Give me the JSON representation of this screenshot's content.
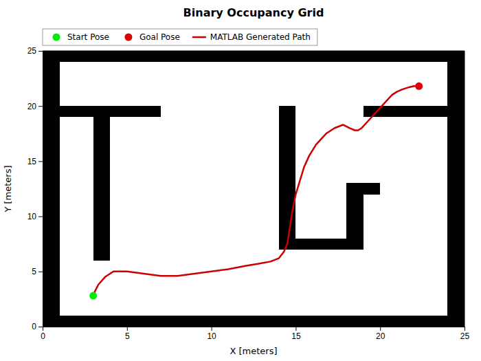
{
  "chart_data": {
    "type": "line",
    "title": "Binary Occupancy Grid",
    "x_label": "X [meters]",
    "y_label": "Y [meters]",
    "xlim": [
      0,
      25
    ],
    "ylim": [
      0,
      25
    ],
    "xticks": [
      0,
      5,
      10,
      15,
      20,
      25
    ],
    "yticks": [
      0,
      5,
      10,
      15,
      20,
      25
    ],
    "legend": "upper left",
    "obstacles": {
      "color": "#000000",
      "rects": [
        {
          "x": 0,
          "y": 0,
          "width": 25,
          "height": 1
        },
        {
          "x": 0,
          "y": 24,
          "width": 25,
          "height": 1
        },
        {
          "x": 0,
          "y": 0,
          "width": 1,
          "height": 25
        },
        {
          "x": 24,
          "y": 0,
          "width": 1,
          "height": 25
        },
        {
          "x": 1,
          "y": 19,
          "width": 6,
          "height": 1
        },
        {
          "x": 3,
          "y": 6,
          "width": 1,
          "height": 14
        },
        {
          "x": 14,
          "y": 7,
          "width": 1,
          "height": 13
        },
        {
          "x": 14,
          "y": 7,
          "width": 5,
          "height": 1
        },
        {
          "x": 18,
          "y": 7,
          "width": 1,
          "height": 6
        },
        {
          "x": 19,
          "y": 19,
          "width": 5,
          "height": 1
        },
        {
          "x": 19,
          "y": 12,
          "width": 1,
          "height": 1
        }
      ]
    },
    "series": [
      {
        "name": "Start Pose",
        "type": "scatter",
        "color": "#00ee00",
        "x": [
          3.0
        ],
        "values": [
          2.8
        ]
      },
      {
        "name": "Goal Pose",
        "type": "scatter",
        "color": "#dd0000",
        "x": [
          22.3
        ],
        "values": [
          21.8
        ]
      },
      {
        "name": "MATLAB Generated Path",
        "type": "line",
        "color": "#cc0000",
        "x": [
          3.0,
          3.1,
          3.3,
          3.7,
          4.2,
          5.0,
          6.0,
          7.0,
          8.0,
          9.0,
          10.0,
          11.0,
          12.0,
          12.8,
          13.5,
          14.0,
          14.3,
          14.5,
          14.6,
          14.7,
          14.8,
          15.0,
          15.3,
          15.5,
          15.8,
          16.2,
          16.8,
          17.3,
          17.8,
          18.2,
          18.5,
          18.7,
          18.9,
          19.2,
          19.5,
          19.8,
          20.1,
          20.4,
          20.7,
          21.0,
          21.3,
          21.7,
          22.0,
          22.3
        ],
        "values": [
          2.8,
          3.2,
          3.8,
          4.5,
          5.0,
          5.0,
          4.8,
          4.6,
          4.6,
          4.8,
          5.0,
          5.2,
          5.5,
          5.7,
          5.9,
          6.2,
          6.8,
          7.5,
          8.5,
          9.5,
          10.5,
          12.0,
          13.5,
          14.5,
          15.5,
          16.5,
          17.5,
          18.0,
          18.3,
          18.0,
          17.8,
          17.8,
          18.0,
          18.5,
          19.0,
          19.5,
          20.0,
          20.5,
          21.0,
          21.3,
          21.5,
          21.7,
          21.8,
          21.8
        ]
      }
    ]
  }
}
